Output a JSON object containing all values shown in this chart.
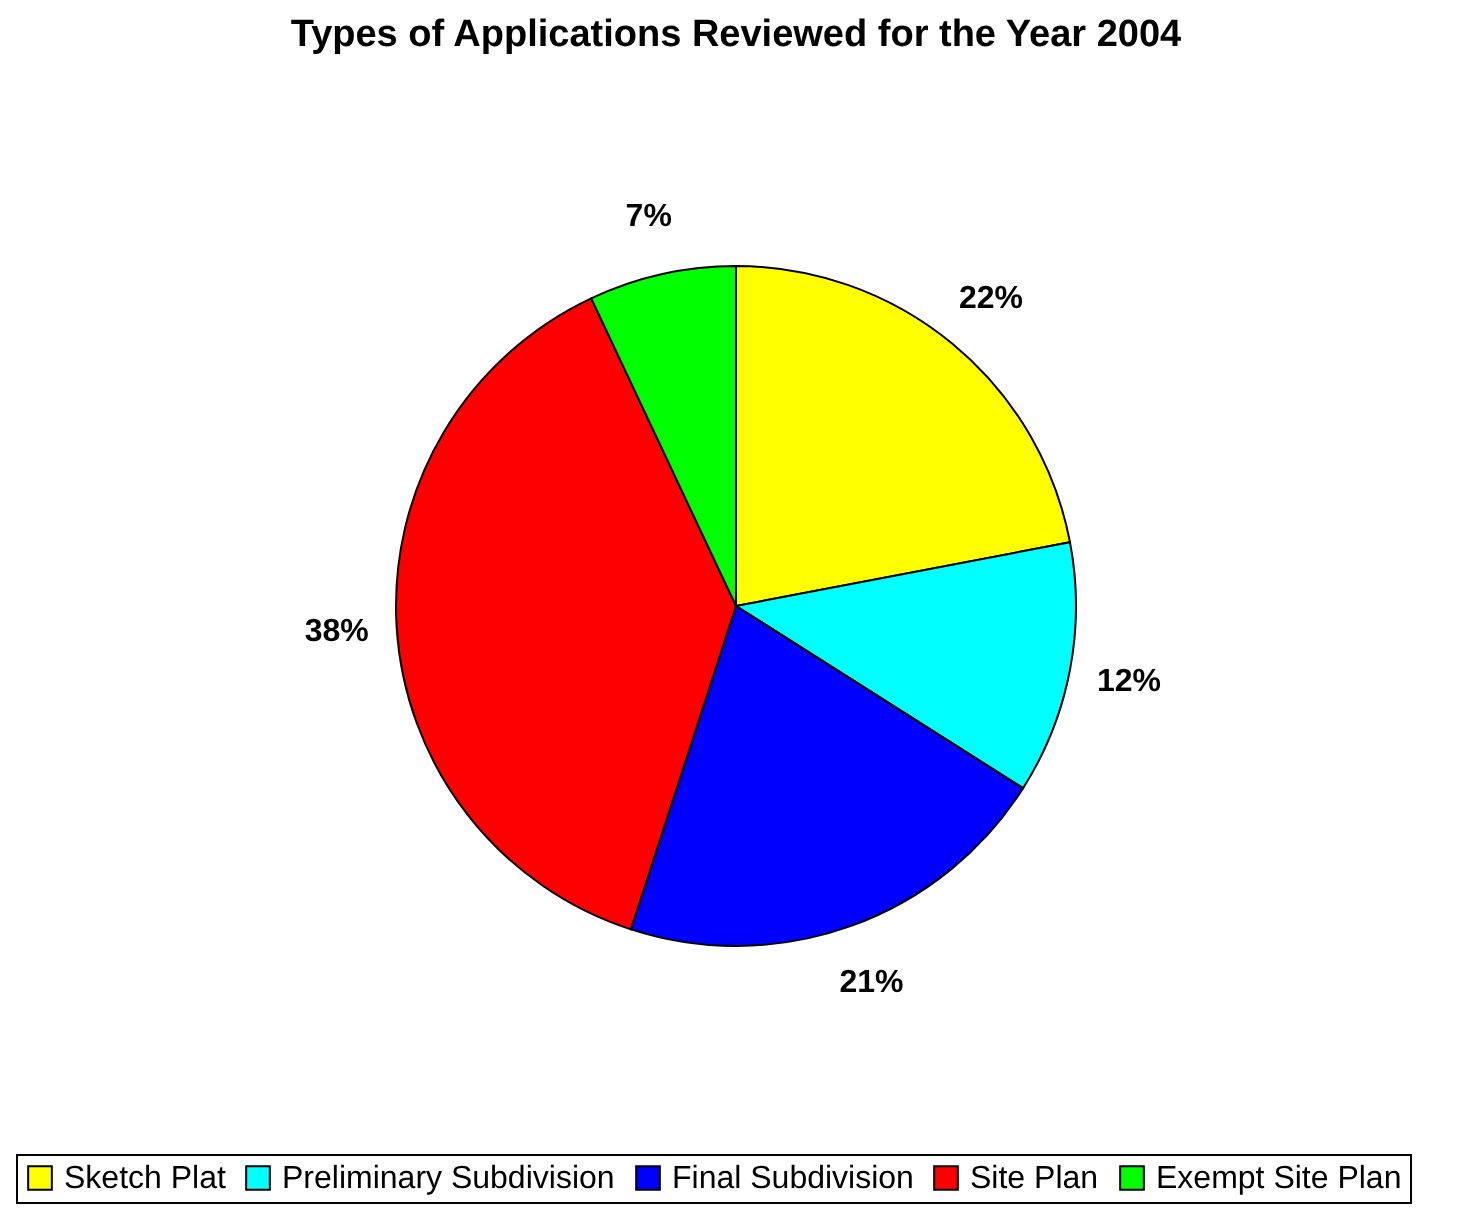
{
  "chart_data": {
    "type": "pie",
    "title": "Types of Applications Reviewed for the Year 2004",
    "categories": [
      "Sketch Plat",
      "Preliminary Subdivision",
      "Final Subdivision",
      "Site Plan",
      "Exempt Site Plan"
    ],
    "values": [
      22,
      12,
      21,
      38,
      7
    ],
    "value_labels": [
      "22%",
      "12%",
      "21%",
      "38%",
      "7%"
    ],
    "colors": [
      "#ffff00",
      "#00ffff",
      "#0000ff",
      "#ff0000",
      "#00ff00"
    ],
    "legend": "bottom"
  }
}
